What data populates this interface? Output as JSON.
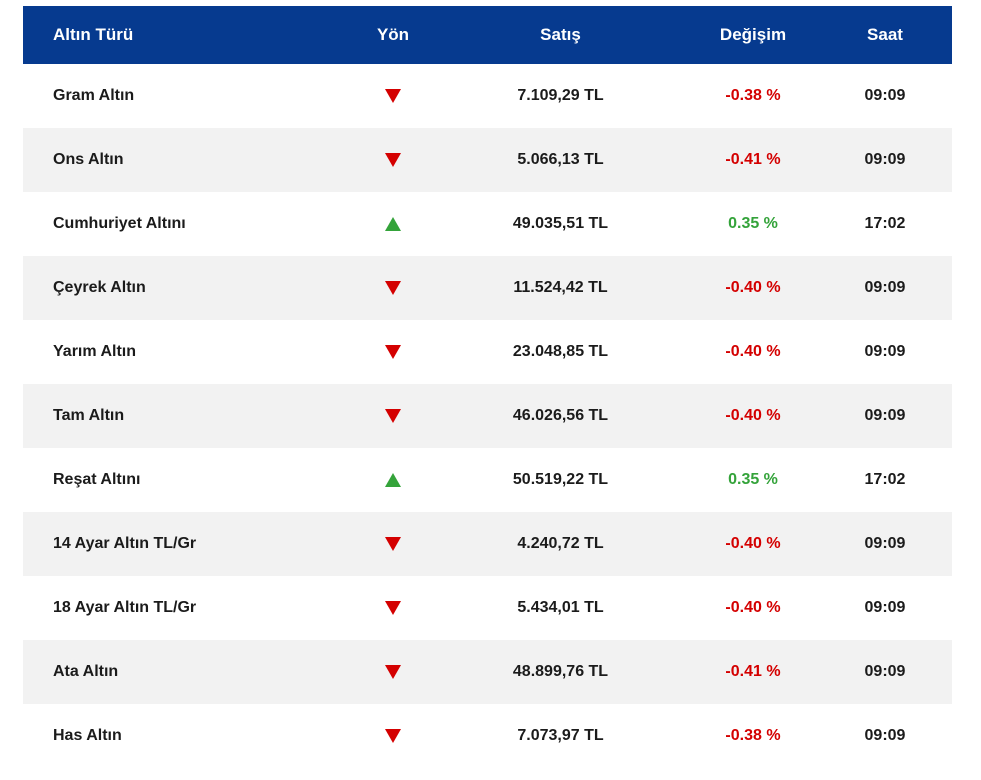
{
  "colors": {
    "header_bg": "#063a8f",
    "down": "#d40000",
    "up": "#34a33a",
    "alt_row": "#f2f2f2"
  },
  "header": {
    "type": "Altın Türü",
    "direction": "Yön",
    "sell": "Satış",
    "change": "Değişim",
    "time": "Saat"
  },
  "rows": [
    {
      "name": "Gram Altın",
      "direction": "down",
      "sell": "7.109,29 TL",
      "change": "-0.38 %",
      "time": "09:09"
    },
    {
      "name": "Ons Altın",
      "direction": "down",
      "sell": "5.066,13 TL",
      "change": "-0.41 %",
      "time": "09:09"
    },
    {
      "name": "Cumhuriyet Altını",
      "direction": "up",
      "sell": "49.035,51 TL",
      "change": "0.35 %",
      "time": "17:02"
    },
    {
      "name": "Çeyrek Altın",
      "direction": "down",
      "sell": "11.524,42 TL",
      "change": "-0.40 %",
      "time": "09:09"
    },
    {
      "name": "Yarım Altın",
      "direction": "down",
      "sell": "23.048,85 TL",
      "change": "-0.40 %",
      "time": "09:09"
    },
    {
      "name": "Tam Altın",
      "direction": "down",
      "sell": "46.026,56 TL",
      "change": "-0.40 %",
      "time": "09:09"
    },
    {
      "name": "Reşat Altını",
      "direction": "up",
      "sell": "50.519,22 TL",
      "change": "0.35 %",
      "time": "17:02"
    },
    {
      "name": "14 Ayar Altın TL/Gr",
      "direction": "down",
      "sell": "4.240,72 TL",
      "change": "-0.40 %",
      "time": "09:09"
    },
    {
      "name": "18 Ayar Altın TL/Gr",
      "direction": "down",
      "sell": "5.434,01 TL",
      "change": "-0.40 %",
      "time": "09:09"
    },
    {
      "name": "Ata Altın",
      "direction": "down",
      "sell": "48.899,76 TL",
      "change": "-0.41 %",
      "time": "09:09"
    },
    {
      "name": "Has Altın",
      "direction": "down",
      "sell": "7.073,97 TL",
      "change": "-0.38 %",
      "time": "09:09"
    }
  ]
}
